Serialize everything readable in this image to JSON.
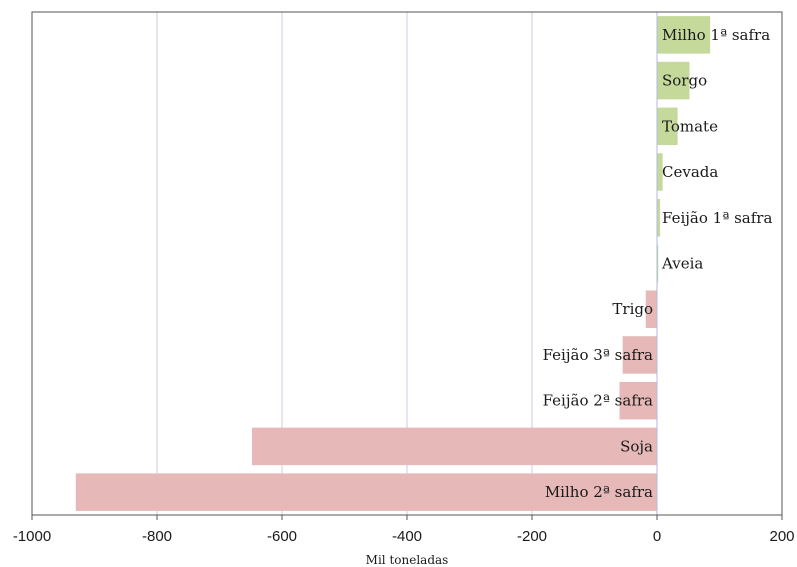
{
  "chart_data": {
    "type": "bar",
    "orientation": "horizontal",
    "categories": [
      "Milho 1ª safra",
      "Sorgo",
      "Tomate",
      "Cevada",
      "Feijão 1ª safra",
      "Aveia",
      "Trigo",
      "Feijão 3ª safra",
      "Feijão 2ª safra",
      "Soja",
      "Milho 2ª safra"
    ],
    "values": [
      85,
      52,
      33,
      9,
      5,
      2,
      -18,
      -55,
      -60,
      -648,
      -930
    ],
    "xlabel": "Mil toneladas",
    "ylabel": "",
    "xlim": [
      -1000,
      200
    ],
    "xticks": [
      -1000,
      -800,
      -600,
      -400,
      -200,
      0,
      200
    ],
    "grid": "vertical",
    "legend": "none",
    "colors": {
      "positive": "#c5d99b",
      "negative": "#e6b8b8",
      "grid": "#c8cdea",
      "zero_line": "#b3b9e0",
      "frame": "#555555"
    }
  }
}
